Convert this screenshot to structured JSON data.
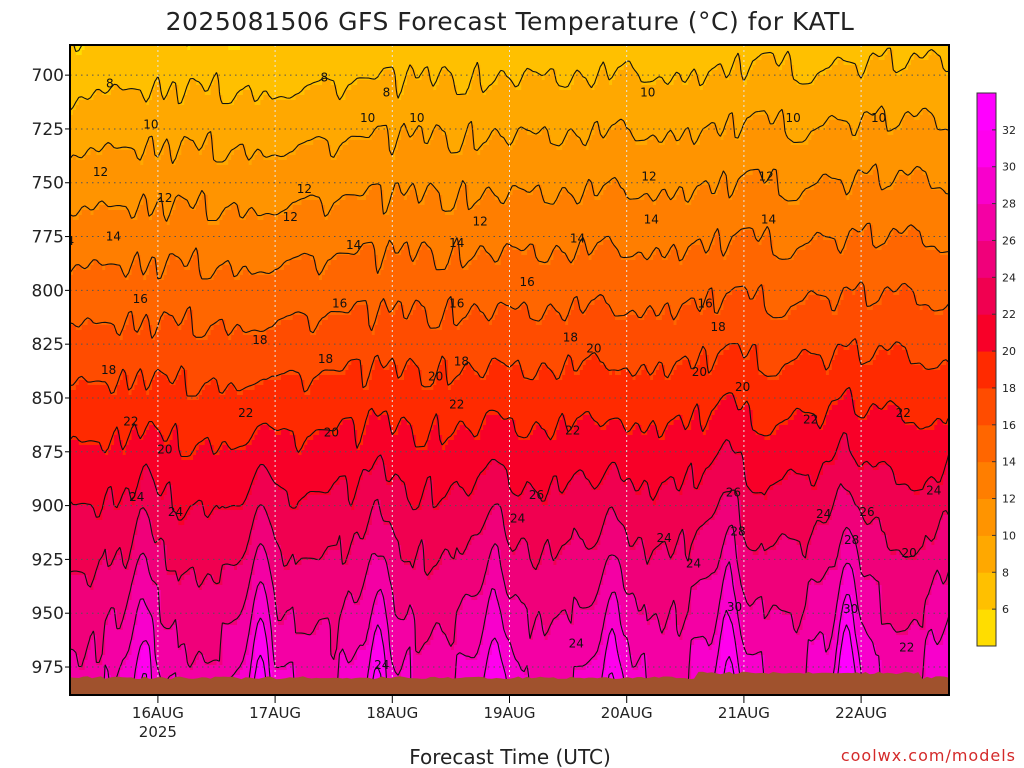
{
  "title": "2025081506 GFS Forecast Temperature (°C) for KATL",
  "xlabel": "Forecast Time (UTC)",
  "credit": "coolwx.com/models",
  "chart_data": {
    "type": "heatmap",
    "title": "2025081506 GFS Forecast Temperature (°C) for KATL",
    "xlabel": "Forecast Time (UTC)",
    "ylabel": "",
    "y_scale": "pressure (hPa), inverted",
    "yticks": [
      700,
      725,
      750,
      775,
      800,
      825,
      850,
      875,
      900,
      925,
      950,
      975
    ],
    "ylim": [
      988,
      686
    ],
    "xticks": [
      {
        "label": "16AUG",
        "sublabel": "2025",
        "day": 16
      },
      {
        "label": "17AUG",
        "sublabel": "",
        "day": 17
      },
      {
        "label": "18AUG",
        "sublabel": "",
        "day": 18
      },
      {
        "label": "19AUG",
        "sublabel": "",
        "day": 19
      },
      {
        "label": "20AUG",
        "sublabel": "",
        "day": 20
      },
      {
        "label": "21AUG",
        "sublabel": "",
        "day": 21
      },
      {
        "label": "22AUG",
        "sublabel": "",
        "day": 22
      }
    ],
    "xlim_days": [
      15.25,
      22.75
    ],
    "grid": true,
    "colorbar": {
      "levels": [
        4,
        6,
        8,
        10,
        12,
        14,
        16,
        18,
        20,
        22,
        24,
        26,
        28,
        30,
        32,
        34
      ],
      "tick_labels": [
        "6",
        "8",
        "10",
        "12",
        "14",
        "16",
        "18",
        "20",
        "22",
        "24",
        "26",
        "28",
        "30",
        "32"
      ],
      "colors": [
        "#ffdd00",
        "#ffc000",
        "#ffa800",
        "#ff9400",
        "#ff7e00",
        "#ff6600",
        "#ff4c00",
        "#ff2a00",
        "#f80028",
        "#f00050",
        "#f0007a",
        "#f400a4",
        "#f800cc",
        "#ff00ee",
        "#ff00ff"
      ],
      "position": "right"
    },
    "profile_t850": 19,
    "profile_lapse_c_per_25hpa": 1.85,
    "surface_pressure": 980,
    "daily_afternoon_max_at_975": [
      31,
      30,
      30,
      30,
      31,
      32,
      31
    ],
    "contour_labels": [
      {
        "text": "8",
        "day": 15.59,
        "p": 704
      },
      {
        "text": "8",
        "day": 17.42,
        "p": 701
      },
      {
        "text": "8",
        "day": 17.95,
        "p": 708
      },
      {
        "text": "10",
        "day": 15.94,
        "p": 723
      },
      {
        "text": "10",
        "day": 17.79,
        "p": 720
      },
      {
        "text": "10",
        "day": 18.21,
        "p": 720
      },
      {
        "text": "10",
        "day": 20.18,
        "p": 708
      },
      {
        "text": "10",
        "day": 21.42,
        "p": 720
      },
      {
        "text": "10",
        "day": 22.15,
        "p": 720
      },
      {
        "text": "12",
        "day": 15.51,
        "p": 745
      },
      {
        "text": "12",
        "day": 16.06,
        "p": 757
      },
      {
        "text": "12",
        "day": 17.13,
        "p": 766
      },
      {
        "text": "12",
        "day": 17.25,
        "p": 753
      },
      {
        "text": "12",
        "day": 18.75,
        "p": 768
      },
      {
        "text": "12",
        "day": 20.19,
        "p": 747
      },
      {
        "text": "12",
        "day": 21.19,
        "p": 747
      },
      {
        "text": "14",
        "day": 15.22,
        "p": 777
      },
      {
        "text": "14",
        "day": 15.62,
        "p": 775
      },
      {
        "text": "14",
        "day": 17.67,
        "p": 779
      },
      {
        "text": "14",
        "day": 18.55,
        "p": 778
      },
      {
        "text": "14",
        "day": 19.58,
        "p": 776
      },
      {
        "text": "14",
        "day": 20.21,
        "p": 767
      },
      {
        "text": "14",
        "day": 21.21,
        "p": 767
      },
      {
        "text": "16",
        "day": 15.85,
        "p": 804
      },
      {
        "text": "16",
        "day": 17.55,
        "p": 806
      },
      {
        "text": "16",
        "day": 18.55,
        "p": 806
      },
      {
        "text": "16",
        "day": 19.15,
        "p": 796
      },
      {
        "text": "16",
        "day": 20.67,
        "p": 806
      },
      {
        "text": "18",
        "day": 15.58,
        "p": 837
      },
      {
        "text": "18",
        "day": 16.87,
        "p": 823
      },
      {
        "text": "18",
        "day": 17.43,
        "p": 832
      },
      {
        "text": "18",
        "day": 18.59,
        "p": 833
      },
      {
        "text": "18",
        "day": 19.52,
        "p": 822
      },
      {
        "text": "18",
        "day": 20.78,
        "p": 817
      },
      {
        "text": "20",
        "day": 15.15,
        "p": 876
      },
      {
        "text": "20",
        "day": 16.06,
        "p": 874
      },
      {
        "text": "20",
        "day": 17.48,
        "p": 866
      },
      {
        "text": "20",
        "day": 18.37,
        "p": 840
      },
      {
        "text": "20",
        "day": 19.72,
        "p": 827
      },
      {
        "text": "20",
        "day": 20.62,
        "p": 838
      },
      {
        "text": "20",
        "day": 20.99,
        "p": 845
      },
      {
        "text": "22",
        "day": 15.77,
        "p": 861
      },
      {
        "text": "22",
        "day": 16.75,
        "p": 857
      },
      {
        "text": "22",
        "day": 18.55,
        "p": 853
      },
      {
        "text": "22",
        "day": 19.54,
        "p": 865
      },
      {
        "text": "22",
        "day": 21.57,
        "p": 860
      },
      {
        "text": "22",
        "day": 22.36,
        "p": 857
      },
      {
        "text": "22",
        "day": 22.39,
        "p": 966
      },
      {
        "text": "24",
        "day": 15.82,
        "p": 896
      },
      {
        "text": "24",
        "day": 16.15,
        "p": 903
      },
      {
        "text": "24",
        "day": 17.91,
        "p": 974
      },
      {
        "text": "24",
        "day": 19.07,
        "p": 906
      },
      {
        "text": "24",
        "day": 19.57,
        "p": 964
      },
      {
        "text": "24",
        "day": 20.32,
        "p": 915
      },
      {
        "text": "24",
        "day": 20.57,
        "p": 927
      },
      {
        "text": "24",
        "day": 21.68,
        "p": 904
      },
      {
        "text": "24",
        "day": 22.62,
        "p": 893
      },
      {
        "text": "26",
        "day": 19.23,
        "p": 895
      },
      {
        "text": "26",
        "day": 20.91,
        "p": 894
      },
      {
        "text": "26",
        "day": 22.05,
        "p": 903
      },
      {
        "text": "28",
        "day": 20.95,
        "p": 912
      },
      {
        "text": "28",
        "day": 21.92,
        "p": 916
      },
      {
        "text": "30",
        "day": 20.92,
        "p": 947
      },
      {
        "text": "30",
        "day": 21.91,
        "p": 948
      },
      {
        "text": "20",
        "day": 22.41,
        "p": 922
      }
    ]
  }
}
